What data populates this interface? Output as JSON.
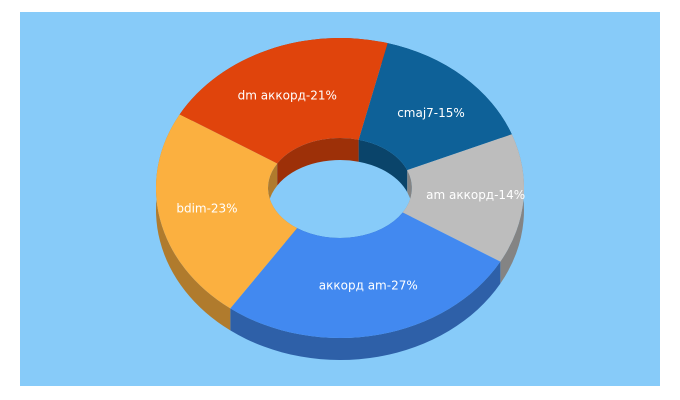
{
  "chart_data": {
    "type": "pie",
    "donut": true,
    "categories": [
      "cmaj7-15%",
      "am аккорд-14%",
      "аккорд am-27%",
      "bdim-23%",
      "dm аккорд-21%"
    ],
    "values": [
      15,
      14,
      27,
      23,
      21
    ],
    "colors": [
      "#0e6198",
      "#bdbdbd",
      "#4289f0",
      "#fbb040",
      "#e0440c"
    ]
  }
}
